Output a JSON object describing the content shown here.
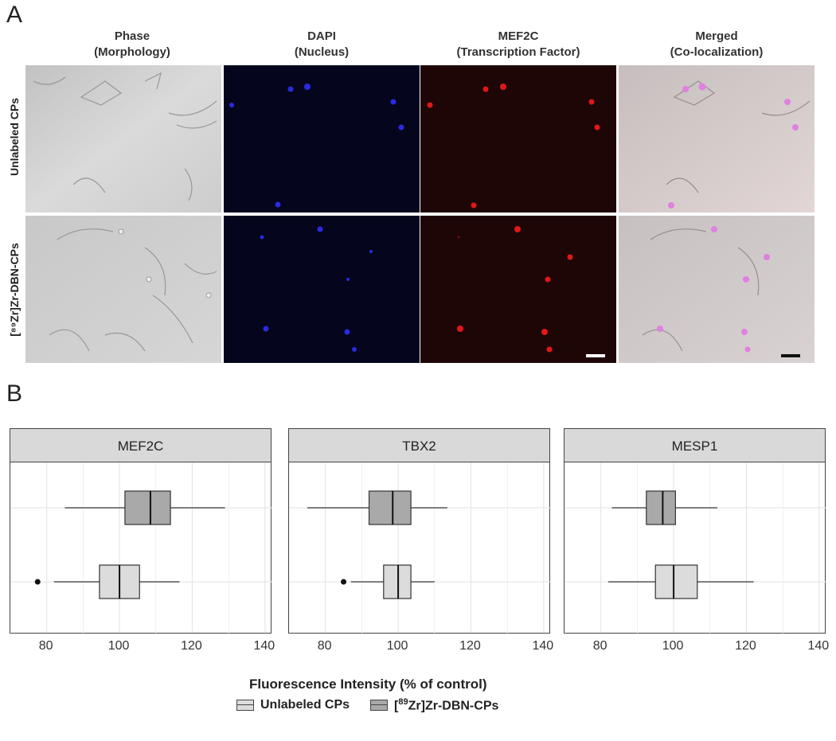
{
  "panel_a": {
    "letter": "A",
    "columns": [
      {
        "line1": "Phase",
        "line2": "(Morphology)"
      },
      {
        "line1": "DAPI",
        "line2": "(Nucleus)"
      },
      {
        "line1": "MEF2C",
        "line2": "(Transcription Factor)"
      },
      {
        "line1": "Merged",
        "line2": "(Co-localization)"
      }
    ],
    "rows": [
      "Unlabeled CPs",
      "[⁸⁹Zr]Zr-DBN-CPs"
    ],
    "colors": {
      "phase": "#cfcfcf",
      "dapi": "#05051e",
      "dapi_cell": "#2a2ae0",
      "mef2c": "#1e0606",
      "mef2c_cell": "#e01818",
      "merged_cell": "#e080e0"
    }
  },
  "panel_b": {
    "letter": "B",
    "xlabel": "Fluorescence Intensity (% of control)",
    "legend": {
      "unlabeled": "Unlabeled CPs",
      "zr_prefix": "[",
      "zr_sup": "89",
      "zr_suffix": "Zr]Zr-DBN-CPs"
    },
    "colors": {
      "unlabeled": "#dcdcdc",
      "zr": "#a9a9a9",
      "strip": "#d9d9d9",
      "grid": "#e6e6e6"
    }
  },
  "chart_data": [
    {
      "type": "boxplot",
      "title": "MEF2C",
      "xlim": [
        70,
        142
      ],
      "xticks": [
        80,
        100,
        120,
        140
      ],
      "series": [
        {
          "name": "[89Zr]Zr-DBN-CPs",
          "min": 85,
          "q1": 101.5,
          "median": 108.5,
          "q3": 114,
          "max": 129,
          "outliers": []
        },
        {
          "name": "Unlabeled CPs",
          "min": 82,
          "q1": 94.5,
          "median": 100,
          "q3": 105.5,
          "max": 116.5,
          "outliers": [
            77.5
          ]
        }
      ]
    },
    {
      "type": "boxplot",
      "title": "TBX2",
      "xlim": [
        70,
        142
      ],
      "xticks": [
        80,
        100,
        120,
        140
      ],
      "series": [
        {
          "name": "[89Zr]Zr-DBN-CPs",
          "min": 75,
          "q1": 92,
          "median": 98.5,
          "q3": 103.5,
          "max": 113.5,
          "outliers": []
        },
        {
          "name": "Unlabeled CPs",
          "min": 87,
          "q1": 96,
          "median": 100,
          "q3": 103.5,
          "max": 110,
          "outliers": [
            85
          ]
        }
      ]
    },
    {
      "type": "boxplot",
      "title": "MESP1",
      "xlim": [
        70,
        142
      ],
      "xticks": [
        80,
        100,
        120,
        140
      ],
      "series": [
        {
          "name": "[89Zr]Zr-DBN-CPs",
          "min": 83,
          "q1": 92.5,
          "median": 97,
          "q3": 100.5,
          "max": 112,
          "outliers": []
        },
        {
          "name": "Unlabeled CPs",
          "min": 82,
          "q1": 95,
          "median": 100,
          "q3": 106.5,
          "max": 122,
          "outliers": []
        }
      ]
    }
  ]
}
